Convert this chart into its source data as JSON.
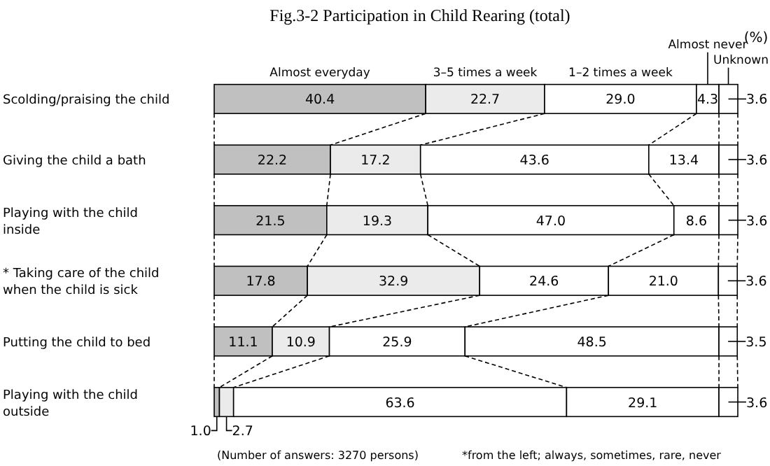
{
  "chart_data": {
    "type": "bar",
    "orientation": "horizontal",
    "stacked": true,
    "title": "Fig.3-2 Participation in Child Rearing (total)",
    "categories": [
      "Scolding/praising the child",
      "Giving the child a bath",
      "Playing with the child inside",
      "* Taking care of the child when the child is sick",
      "Putting the child to bed",
      "Playing with the child outside"
    ],
    "series": [
      {
        "name": "Almost everyday",
        "color": "#c0c0c0",
        "values": [
          40.4,
          22.2,
          21.5,
          17.8,
          11.1,
          1.0
        ],
        "value_labels": [
          "40.4",
          "22.2",
          "21.5",
          "17.8",
          "11.1",
          "1.0"
        ]
      },
      {
        "name": "3–5 times a week",
        "color": "#ebebeb",
        "values": [
          22.7,
          17.2,
          19.3,
          32.9,
          10.9,
          2.7
        ],
        "value_labels": [
          "22.7",
          "17.2",
          "19.3",
          "32.9",
          "10.9",
          "2.7"
        ]
      },
      {
        "name": "1–2 times a week",
        "color": "#ffffff",
        "values": [
          29.0,
          43.6,
          47.0,
          24.6,
          25.9,
          63.6
        ],
        "value_labels": [
          "29.0",
          "43.6",
          "47.0",
          "24.6",
          "25.9",
          "63.6"
        ]
      },
      {
        "name": "Almost never",
        "color": "#ffffff",
        "values": [
          4.3,
          13.4,
          8.6,
          21.0,
          48.5,
          29.1
        ],
        "value_labels": [
          "4.3",
          "13.4",
          "8.6",
          "21.0",
          "48.5",
          "29.1"
        ]
      },
      {
        "name": "Unknown",
        "color": "#ffffff",
        "values": [
          3.6,
          3.6,
          3.6,
          3.6,
          3.5,
          3.6
        ],
        "value_labels": [
          "3.6",
          "3.6",
          "3.6",
          "3.6",
          "3.5",
          "3.6"
        ]
      }
    ],
    "xlim": [
      0,
      100
    ],
    "tick_labels": false,
    "legend": "top",
    "annotations": [
      "(%)",
      "(Number of answers: 3270 persons)",
      "*from the left; always, sometimes, rare, never"
    ]
  }
}
